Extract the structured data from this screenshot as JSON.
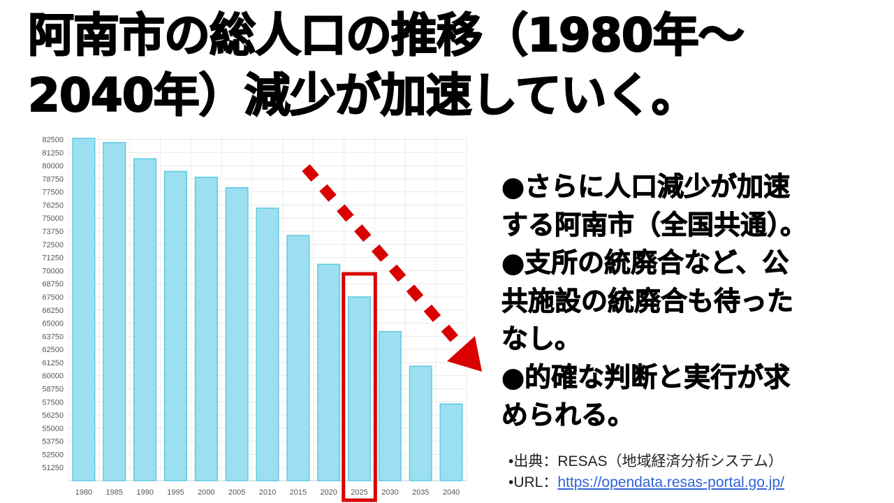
{
  "title": {
    "line1": "阿南市の総人口の推移（1980年～",
    "line2": "2040年）減少が加速していく。"
  },
  "bullets": [
    "●さらに人口減少が加速",
    "する阿南市（全国共通）。",
    "●支所の統廃合など、公",
    "共施設の統廃合も待った",
    "なし。",
    "●的確な判断と実行が求",
    "められる。"
  ],
  "source": {
    "line1": "•出典：RESAS（地域経済分析システム）",
    "url_prefix": "•URL：",
    "url": "https://opendata.resas-portal.go.jp/"
  },
  "colors": {
    "bar_fill": "#9bdff0",
    "bar_stroke": "#5fc8e4",
    "highlight": "#d90000",
    "arrow": "#d90000"
  },
  "chart_data": {
    "type": "bar",
    "categories": [
      "1980",
      "1985",
      "1990",
      "1995",
      "2000",
      "2005",
      "2010",
      "2015",
      "2020",
      "2025",
      "2030",
      "2035",
      "2040"
    ],
    "values": [
      82600,
      82200,
      80650,
      79450,
      78900,
      77900,
      75950,
      73350,
      70600,
      67500,
      64200,
      60900,
      57300
    ],
    "yticks": [
      51250,
      52500,
      53750,
      55000,
      56250,
      57500,
      58750,
      60000,
      61250,
      62500,
      63750,
      65000,
      66250,
      67500,
      68750,
      70000,
      71250,
      72500,
      73750,
      75000,
      76250,
      77500,
      78750,
      80000,
      81250,
      82500
    ],
    "ylim": [
      50000,
      83000
    ],
    "highlight_category": "2025",
    "grid": true,
    "title": "",
    "xlabel": "",
    "ylabel": ""
  }
}
